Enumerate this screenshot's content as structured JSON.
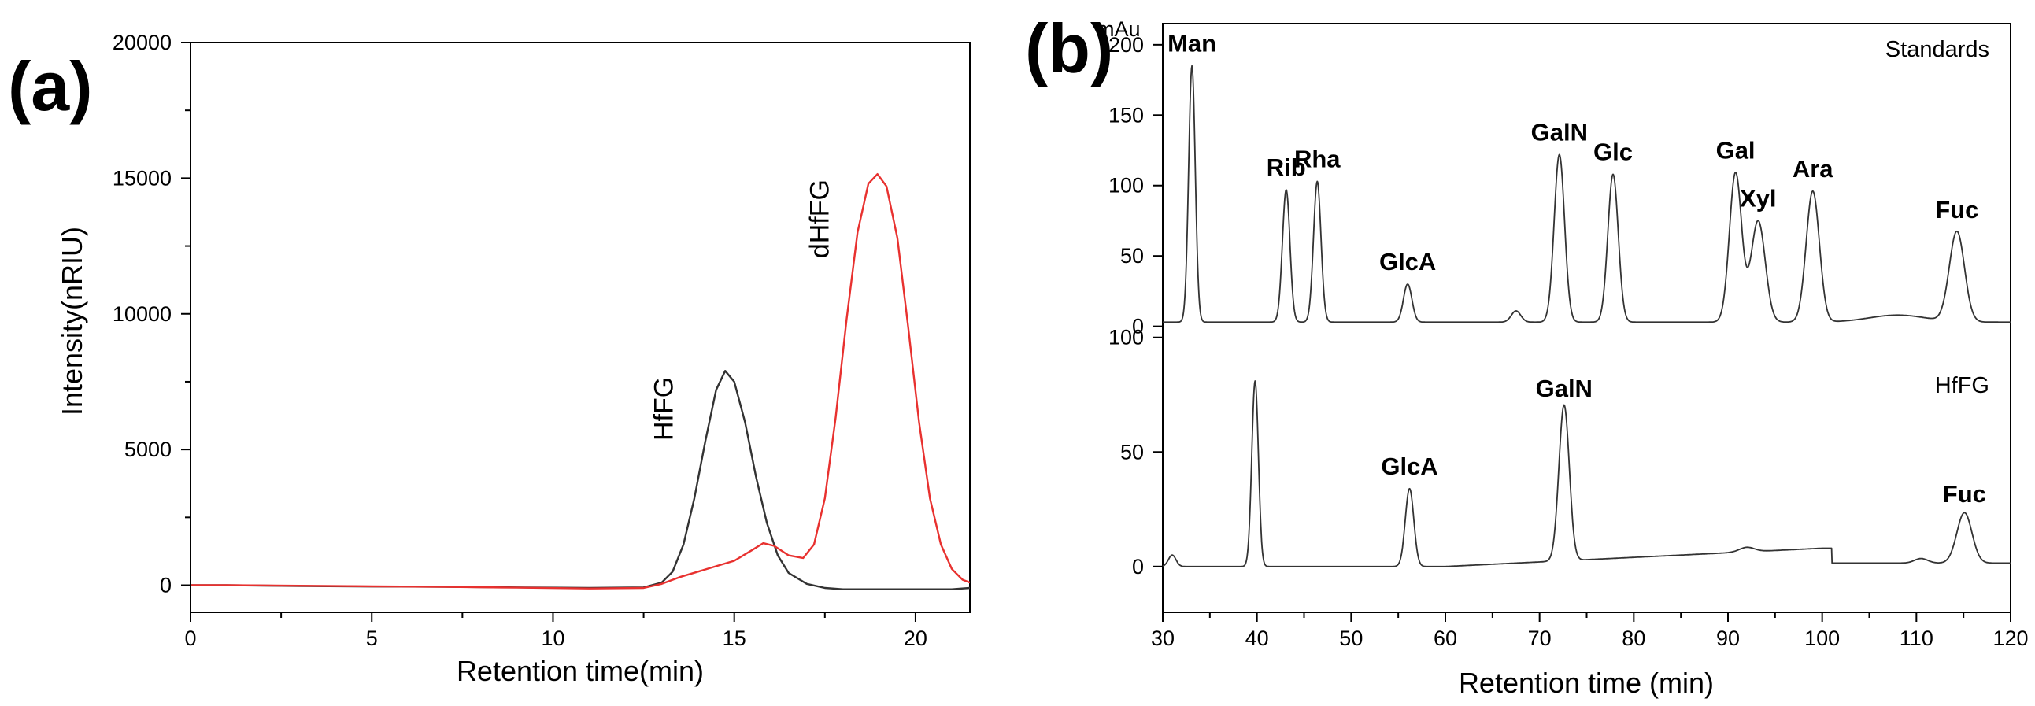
{
  "chart_data": [
    {
      "type": "line",
      "panel_label": "(a)",
      "title": "",
      "xlabel": "Retention time(min)",
      "ylabel": "Intensity(nRIU)",
      "xlim": [
        0,
        21.5
      ],
      "ylim": [
        -1000,
        20000
      ],
      "xticks": [
        0,
        5,
        10,
        15,
        20
      ],
      "yticks": [
        0,
        5000,
        10000,
        15000,
        20000
      ],
      "grid": false,
      "series": [
        {
          "name": "HfFG",
          "color": "#333333",
          "x": [
            0,
            1,
            3,
            5,
            7,
            9,
            11,
            12.5,
            13.0,
            13.3,
            13.6,
            13.9,
            14.2,
            14.5,
            14.75,
            15.0,
            15.3,
            15.6,
            15.9,
            16.2,
            16.5,
            17.0,
            17.5,
            18,
            19,
            20,
            21,
            21.5
          ],
          "y": [
            0,
            0,
            -30,
            -50,
            -60,
            -80,
            -100,
            -80,
            100,
            500,
            1500,
            3200,
            5300,
            7200,
            7900,
            7500,
            6000,
            4000,
            2300,
            1100,
            450,
            50,
            -100,
            -150,
            -150,
            -150,
            -150,
            -100
          ]
        },
        {
          "name": "dHfFG",
          "color": "#e8312f",
          "x": [
            0,
            1,
            3,
            5,
            7,
            9,
            11,
            12.5,
            13.0,
            13.5,
            14.0,
            14.5,
            15.0,
            15.5,
            15.8,
            16.1,
            16.5,
            16.9,
            17.2,
            17.5,
            17.8,
            18.1,
            18.4,
            18.7,
            18.95,
            19.2,
            19.5,
            19.8,
            20.1,
            20.4,
            20.7,
            21.0,
            21.3,
            21.5
          ],
          "y": [
            0,
            0,
            -20,
            -40,
            -60,
            -90,
            -120,
            -100,
            50,
            300,
            500,
            700,
            900,
            1300,
            1550,
            1450,
            1100,
            1000,
            1500,
            3200,
            6200,
            9800,
            13000,
            14800,
            15150,
            14700,
            12800,
            9500,
            6000,
            3200,
            1500,
            600,
            200,
            100
          ]
        }
      ],
      "annotations": [
        {
          "text": "HfFG",
          "x": 13.3,
          "y": 6500,
          "rotation": -90
        },
        {
          "text": "dHfFG",
          "x": 17.6,
          "y": 13500,
          "rotation": -90
        }
      ]
    },
    {
      "type": "line",
      "panel_label": "(b)",
      "title": "",
      "xlabel": "Retention time (min)",
      "ylabel": "mAu",
      "xlim": [
        30,
        120
      ],
      "xticks": [
        30,
        40,
        50,
        60,
        70,
        80,
        90,
        100,
        110,
        120
      ],
      "grid": false,
      "series": [
        {
          "name": "Standards",
          "color": "#333333",
          "ylim": [
            -3,
            215
          ],
          "yticks": [
            0,
            50,
            100,
            150,
            200
          ],
          "baseline": 3,
          "peaks": [
            {
              "label": "Man",
              "x": 33.1,
              "height": 182,
              "width": 0.35
            },
            {
              "label": "Rib",
              "x": 43.1,
              "height": 94,
              "width": 0.4
            },
            {
              "label": "Rha",
              "x": 46.4,
              "height": 100,
              "width": 0.4
            },
            {
              "label": "GlcA",
              "x": 56.0,
              "height": 27,
              "width": 0.45
            },
            {
              "label": "",
              "x": 67.5,
              "height": 8,
              "width": 0.5
            },
            {
              "label": "GalN",
              "x": 72.1,
              "height": 119,
              "width": 0.55
            },
            {
              "label": "Glc",
              "x": 77.8,
              "height": 105,
              "width": 0.55
            },
            {
              "label": "Gal",
              "x": 90.8,
              "height": 106,
              "width": 0.65
            },
            {
              "label": "Xyl",
              "x": 93.2,
              "height": 72,
              "width": 0.75
            },
            {
              "label": "Ara",
              "x": 99.0,
              "height": 93,
              "width": 0.7
            },
            {
              "label": "",
              "x": 108.0,
              "height": 5,
              "width": 3.0
            },
            {
              "label": "Fuc",
              "x": 114.3,
              "height": 64,
              "width": 0.8
            }
          ]
        },
        {
          "name": "HfFG",
          "color": "#333333",
          "ylim": [
            -20,
            103
          ],
          "yticks": [
            0,
            50,
            100
          ],
          "baseline": 0,
          "peaks": [
            {
              "label": "",
              "x": 31.0,
              "height": 5,
              "width": 0.4
            },
            {
              "label": "",
              "x": 39.8,
              "height": 81,
              "width": 0.35
            },
            {
              "label": "GlcA",
              "x": 56.2,
              "height": 34,
              "width": 0.45
            },
            {
              "label": "GalN",
              "x": 72.6,
              "height": 68,
              "width": 0.55
            },
            {
              "label": "",
              "x": 92.0,
              "height": 2,
              "width": 0.8
            },
            {
              "label": "",
              "x": 110.5,
              "height": 2,
              "width": 0.7
            },
            {
              "label": "Fuc",
              "x": 115.1,
              "height": 22,
              "width": 0.8
            }
          ]
        }
      ]
    }
  ]
}
